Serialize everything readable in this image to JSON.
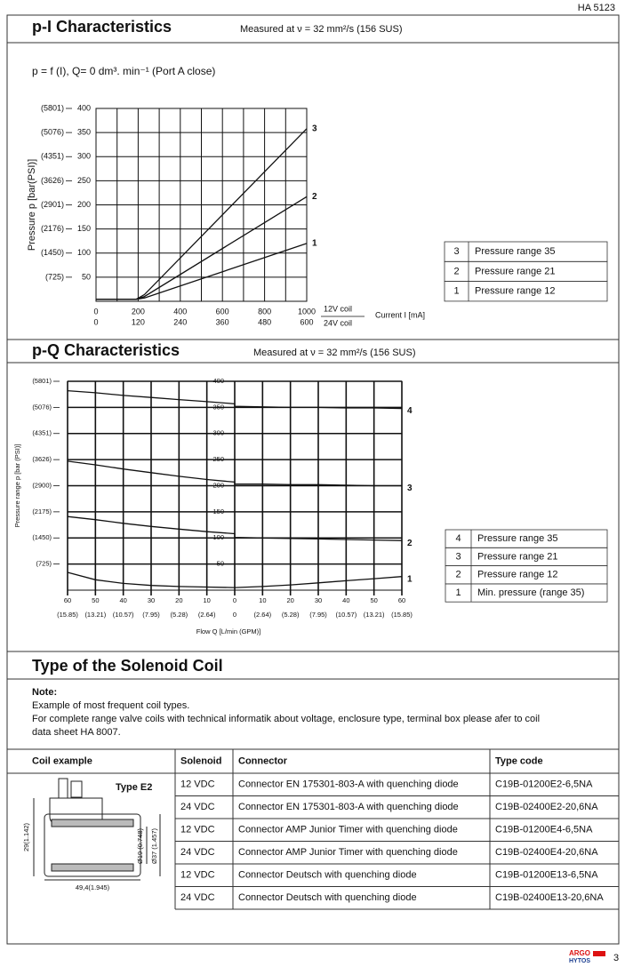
{
  "header": {
    "doc_id": "HA 5123"
  },
  "sections": [
    {
      "title": "p-I Characteristics",
      "subtitle": "Measured at ν = 32 mm²/s (156 SUS)",
      "formula": "p = f (I), Q= 0 dm³. min⁻¹  (Port A close)"
    },
    {
      "title": "p-Q Characteristics",
      "subtitle": "Measured at ν = 32 mm²/s (156 SUS)"
    },
    {
      "title": "Type of the Solenoid Coil"
    }
  ],
  "chart_data": [
    {
      "type": "line",
      "x_label": "Current I [mA]",
      "x_axis_names": [
        "12V coil",
        "24V coil"
      ],
      "y_label": "Pressure p [bar(PSI)]",
      "xlim": [
        0,
        1000
      ],
      "xticks": [
        0,
        200,
        400,
        600,
        800,
        1000
      ],
      "x_minor_ticks": [
        100,
        300,
        500,
        700,
        900
      ],
      "x2lim": [
        0,
        600
      ],
      "x2ticks": [
        0,
        120,
        240,
        360,
        480,
        600
      ],
      "ylim": [
        0,
        400
      ],
      "yticks": [
        50,
        100,
        150,
        200,
        250,
        300,
        350,
        400
      ],
      "psi_ticks": [
        {
          "value": 50,
          "label": "(725)"
        },
        {
          "value": 100,
          "label": "(1450)"
        },
        {
          "value": 150,
          "label": "(2176)"
        },
        {
          "value": 200,
          "label": "(2901)"
        },
        {
          "value": 250,
          "label": "(3626)"
        },
        {
          "value": 300,
          "label": "(4351)"
        },
        {
          "value": 350,
          "label": "(5076)"
        },
        {
          "value": 400,
          "label": "(5801)"
        }
      ],
      "grid": true,
      "legend_position": "right",
      "x": [
        0,
        190,
        230,
        1000
      ],
      "series": [
        {
          "name": "3",
          "description": "Pressure range 35",
          "color": "#111111",
          "values": [
            4,
            4,
            14,
            358
          ]
        },
        {
          "name": "2",
          "description": "Pressure range 21",
          "color": "#111111",
          "values": [
            4,
            4,
            10,
            217
          ]
        },
        {
          "name": "1",
          "description": "Pressure range 12",
          "color": "#111111",
          "values": [
            4,
            4,
            7,
            120
          ]
        }
      ]
    },
    {
      "type": "line",
      "x_label": "Flow Q [L/min (GPM)]",
      "y_label": "Pressure range p [bar (PSI)]",
      "xlim": [
        -60,
        60
      ],
      "xticks": [
        {
          "value": -60,
          "label": "60"
        },
        {
          "value": -50,
          "label": "50"
        },
        {
          "value": -40,
          "label": "40"
        },
        {
          "value": -30,
          "label": "30"
        },
        {
          "value": -20,
          "label": "20"
        },
        {
          "value": -10,
          "label": "10"
        },
        0,
        10,
        20,
        30,
        40,
        50,
        60
      ],
      "x2ticks": [
        {
          "value": -60,
          "label": "(15.85)"
        },
        {
          "value": -50,
          "label": "(13.21)"
        },
        {
          "value": -40,
          "label": "(10.57)"
        },
        {
          "value": -30,
          "label": "(7.95)"
        },
        {
          "value": -20,
          "label": "(5.28)"
        },
        {
          "value": -10,
          "label": "(2.64)"
        },
        0,
        {
          "value": 10,
          "label": "(2.64)"
        },
        {
          "value": 20,
          "label": "(5.28)"
        },
        {
          "value": 30,
          "label": "(7.95)"
        },
        {
          "value": 40,
          "label": "(10.57)"
        },
        {
          "value": 50,
          "label": "(13.21)"
        },
        {
          "value": 60,
          "label": "(15.85)"
        }
      ],
      "ylim": [
        0,
        400
      ],
      "yticks": [
        50,
        100,
        150,
        200,
        250,
        300,
        350,
        400
      ],
      "psi_ticks": [
        {
          "value": 50,
          "label": "(725)"
        },
        {
          "value": 100,
          "label": "(1450)"
        },
        {
          "value": 150,
          "label": "(2175)"
        },
        {
          "value": 200,
          "label": "(2900)"
        },
        {
          "value": 250,
          "label": "(3626)"
        },
        {
          "value": 300,
          "label": "(4351)"
        },
        {
          "value": 350,
          "label": "(5076)"
        },
        {
          "value": 400,
          "label": "(5801)"
        }
      ],
      "grid": true,
      "legend_position": "right",
      "x": [
        -60,
        -50,
        -40,
        -30,
        -20,
        -10,
        0,
        0,
        10,
        20,
        30,
        40,
        50,
        60
      ],
      "series": [
        {
          "name": "4",
          "description": "Pressure range 35",
          "color": "#111111",
          "values": [
            382,
            378,
            373,
            369,
            365,
            361,
            357,
            352,
            351,
            350,
            350,
            349,
            349,
            348
          ]
        },
        {
          "name": "3",
          "description": "Pressure range 21",
          "color": "#111111",
          "values": [
            247,
            240,
            232,
            225,
            218,
            212,
            207,
            203,
            203,
            202,
            202,
            201,
            200,
            200
          ]
        },
        {
          "name": "2",
          "description": "Pressure range 12",
          "color": "#111111",
          "values": [
            141,
            135,
            128,
            122,
            117,
            112,
            108,
            101,
            100,
            99,
            98,
            97,
            96,
            95
          ]
        },
        {
          "name": "1",
          "description": "Min. pressure (range 35)",
          "color": "#111111",
          "values": [
            34,
            20,
            13,
            9,
            7,
            6,
            5,
            5,
            7,
            10,
            14,
            18,
            22,
            26
          ]
        }
      ]
    }
  ],
  "note": {
    "label": "Note:",
    "lines": [
      "Example of most frequent coil types.",
      "For complete range  valve coils with technical informatik about voltage, enclosure type, terminal box please afer to coil",
      "data sheet HA 8007."
    ]
  },
  "coil_drawing": {
    "type_label": "Type  E2",
    "height": "29(1.142)",
    "length": "49,4(1.945)",
    "inner_dia": "Ø19 (0.748)",
    "outer_dia": "Ø37 (1.457)"
  },
  "coil_table": {
    "header": [
      "Coil example",
      "Solenoid",
      "Connector",
      "Type code"
    ],
    "rows": [
      [
        "12 VDC",
        "Connector EN 175301-803-A with quenching diode",
        "C19B-01200E2-6,5NA"
      ],
      [
        "24 VDC",
        "Connector EN 175301-803-A with quenching diode",
        "C19B-02400E2-20,6NA"
      ],
      [
        "12 VDC",
        "Connector AMP Junior Timer with quenching diode",
        "C19B-01200E4-6,5NA"
      ],
      [
        "24 VDC",
        "Connector AMP Junior Timer with quenching diode",
        "C19B-02400E4-20,6NA"
      ],
      [
        "12 VDC",
        "Connector Deutsch with quenching diode",
        "C19B-01200E13-6,5NA"
      ],
      [
        "24 VDC",
        "Connector Deutsch with quenching diode",
        "C19B-02400E13-20,6NA"
      ]
    ]
  },
  "footer": {
    "brand": "ARGO",
    "brand2": "HYTOS",
    "page": "3"
  }
}
